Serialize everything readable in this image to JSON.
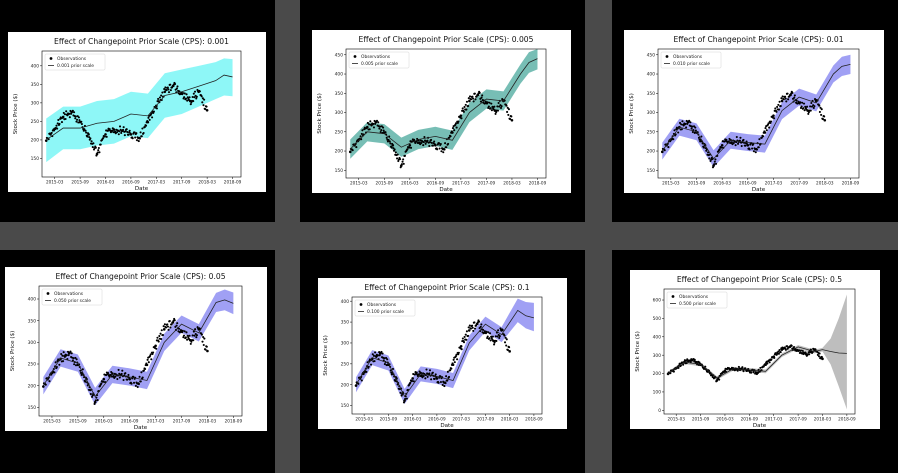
{
  "chart_data": [
    {
      "type": "line",
      "title": "Effect of Changepoint Prior Scale (CPS): 0.001",
      "xlabel": "Date",
      "ylabel": "Stock Price ($)",
      "x_ticks": [
        "2015-03",
        "2015-09",
        "2016-03",
        "2016-09",
        "2017-03",
        "2017-09",
        "2018-03",
        "2018-09"
      ],
      "y_ticks": [
        150,
        200,
        250,
        300,
        350,
        400
      ],
      "ylim": [
        100,
        440
      ],
      "legend": [
        "Observations",
        "0.001 prior scale"
      ],
      "legend_position": "top-left",
      "band_color": "#7af6f6",
      "line_color": "#222222",
      "series": [
        {
          "name": "Observations",
          "x": [
            "2015-01",
            "2015-03",
            "2015-05",
            "2015-07",
            "2015-09",
            "2015-11",
            "2016-01",
            "2016-03",
            "2016-05",
            "2016-07",
            "2016-09",
            "2016-11",
            "2017-01",
            "2017-03",
            "2017-05",
            "2017-07",
            "2017-09",
            "2017-11",
            "2018-01",
            "2018-03"
          ],
          "values": [
            198,
            230,
            262,
            275,
            248,
            215,
            162,
            215,
            228,
            225,
            215,
            205,
            248,
            292,
            330,
            346,
            325,
            305,
            330,
            280
          ]
        },
        {
          "name": "0.001 prior scale",
          "x": [
            "2015-01",
            "2015-05",
            "2015-09",
            "2016-01",
            "2016-05",
            "2016-09",
            "2017-01",
            "2017-05",
            "2017-09",
            "2018-01",
            "2018-05",
            "2018-07",
            "2018-09"
          ],
          "values": [
            200,
            232,
            232,
            245,
            250,
            270,
            265,
            320,
            330,
            345,
            360,
            375,
            370
          ],
          "lower": [
            140,
            175,
            175,
            185,
            190,
            210,
            205,
            260,
            270,
            290,
            310,
            320,
            318
          ],
          "upper": [
            258,
            290,
            290,
            305,
            310,
            330,
            325,
            380,
            390,
            400,
            410,
            420,
            418
          ]
        }
      ]
    },
    {
      "type": "line",
      "title": "Effect of Changepoint Prior Scale (CPS): 0.005",
      "xlabel": "Date",
      "ylabel": "Stock Price ($)",
      "x_ticks": [
        "2015-03",
        "2015-09",
        "2016-03",
        "2016-09",
        "2017-03",
        "2017-09",
        "2018-03",
        "2018-09"
      ],
      "y_ticks": [
        150,
        200,
        250,
        300,
        350,
        400,
        450
      ],
      "ylim": [
        130,
        465
      ],
      "legend": [
        "Observations",
        "0.005 prior scale"
      ],
      "legend_position": "top-left",
      "band_color": "#5fb3a8",
      "line_color": "#222222",
      "series": [
        {
          "name": "Observations",
          "x": [
            "2015-01",
            "2015-03",
            "2015-05",
            "2015-07",
            "2015-09",
            "2015-11",
            "2016-01",
            "2016-03",
            "2016-05",
            "2016-07",
            "2016-09",
            "2016-11",
            "2017-01",
            "2017-03",
            "2017-05",
            "2017-07",
            "2017-09",
            "2017-11",
            "2018-01",
            "2018-03"
          ],
          "values": [
            198,
            230,
            262,
            275,
            248,
            215,
            162,
            215,
            228,
            225,
            215,
            205,
            248,
            292,
            330,
            346,
            325,
            305,
            330,
            280
          ]
        },
        {
          "name": "0.005 prior scale",
          "x": [
            "2015-01",
            "2015-05",
            "2015-09",
            "2016-01",
            "2016-05",
            "2016-09",
            "2017-01",
            "2017-05",
            "2017-09",
            "2018-01",
            "2018-05",
            "2018-07",
            "2018-09"
          ],
          "values": [
            205,
            250,
            245,
            210,
            230,
            238,
            228,
            300,
            335,
            330,
            400,
            430,
            440
          ],
          "lower": [
            180,
            225,
            220,
            185,
            205,
            213,
            203,
            275,
            310,
            305,
            375,
            403,
            412
          ],
          "upper": [
            230,
            275,
            270,
            235,
            255,
            263,
            253,
            325,
            360,
            355,
            425,
            457,
            465
          ]
        }
      ]
    },
    {
      "type": "line",
      "title": "Effect of Changepoint Prior Scale (CPS): 0.01",
      "xlabel": "Date",
      "ylabel": "Stock Price ($)",
      "x_ticks": [
        "2015-03",
        "2015-09",
        "2016-03",
        "2016-09",
        "2017-03",
        "2017-09",
        "2018-03",
        "2018-09"
      ],
      "y_ticks": [
        150,
        200,
        250,
        300,
        350,
        400,
        450
      ],
      "ylim": [
        130,
        465
      ],
      "legend": [
        "Observations",
        "0.010 prior scale"
      ],
      "legend_position": "top-left",
      "band_color": "#8f8ff2",
      "line_color": "#222222",
      "series": [
        {
          "name": "Observations",
          "x": [
            "2015-01",
            "2015-03",
            "2015-05",
            "2015-07",
            "2015-09",
            "2015-11",
            "2016-01",
            "2016-03",
            "2016-05",
            "2016-07",
            "2016-09",
            "2016-11",
            "2017-01",
            "2017-03",
            "2017-05",
            "2017-07",
            "2017-09",
            "2017-11",
            "2018-01",
            "2018-03"
          ],
          "values": [
            198,
            230,
            262,
            275,
            248,
            215,
            162,
            215,
            228,
            225,
            215,
            205,
            248,
            292,
            330,
            346,
            325,
            305,
            330,
            280
          ]
        },
        {
          "name": "0.010 prior scale",
          "x": [
            "2015-01",
            "2015-05",
            "2015-09",
            "2016-01",
            "2016-05",
            "2016-09",
            "2017-01",
            "2017-05",
            "2017-09",
            "2018-01",
            "2018-05",
            "2018-07",
            "2018-09"
          ],
          "values": [
            200,
            262,
            250,
            180,
            228,
            222,
            218,
            305,
            340,
            325,
            400,
            420,
            425
          ],
          "lower": [
            178,
            240,
            228,
            158,
            206,
            200,
            196,
            283,
            318,
            303,
            378,
            395,
            400
          ],
          "upper": [
            222,
            284,
            272,
            202,
            250,
            244,
            240,
            327,
            362,
            347,
            422,
            445,
            450
          ]
        }
      ]
    },
    {
      "type": "line",
      "title": "Effect of Changepoint Prior Scale (CPS): 0.05",
      "xlabel": "Date",
      "ylabel": "Stock Price ($)",
      "x_ticks": [
        "2015-03",
        "2015-09",
        "2016-03",
        "2016-09",
        "2017-03",
        "2017-09",
        "2018-03",
        "2018-09"
      ],
      "y_ticks": [
        150,
        200,
        250,
        300,
        350,
        400
      ],
      "ylim": [
        130,
        430
      ],
      "legend": [
        "Observations",
        "0.050 prior scale"
      ],
      "legend_position": "top-left",
      "band_color": "#8f8ff2",
      "line_color": "#222222",
      "series": [
        {
          "name": "Observations",
          "x": [
            "2015-01",
            "2015-03",
            "2015-05",
            "2015-07",
            "2015-09",
            "2015-11",
            "2016-01",
            "2016-03",
            "2016-05",
            "2016-07",
            "2016-09",
            "2016-11",
            "2017-01",
            "2017-03",
            "2017-05",
            "2017-07",
            "2017-09",
            "2017-11",
            "2018-01",
            "2018-03"
          ],
          "values": [
            198,
            230,
            262,
            275,
            248,
            215,
            162,
            215,
            228,
            225,
            215,
            205,
            248,
            292,
            330,
            346,
            325,
            305,
            330,
            280
          ]
        },
        {
          "name": "0.050 prior scale",
          "x": [
            "2015-01",
            "2015-05",
            "2015-09",
            "2016-01",
            "2016-05",
            "2016-09",
            "2017-01",
            "2017-05",
            "2017-09",
            "2018-01",
            "2018-05",
            "2018-07",
            "2018-09"
          ],
          "values": [
            200,
            264,
            252,
            175,
            226,
            220,
            212,
            300,
            342,
            322,
            392,
            398,
            390
          ],
          "lower": [
            180,
            244,
            232,
            155,
            206,
            200,
            192,
            280,
            322,
            302,
            370,
            374,
            365
          ],
          "upper": [
            220,
            284,
            272,
            195,
            246,
            240,
            232,
            320,
            362,
            342,
            414,
            422,
            415
          ]
        }
      ]
    },
    {
      "type": "line",
      "title": "Effect of Changepoint Prior Scale (CPS): 0.1",
      "xlabel": "Date",
      "ylabel": "Stock Price ($)",
      "x_ticks": [
        "2015-03",
        "2015-09",
        "2016-03",
        "2016-09",
        "2017-03",
        "2017-09",
        "2018-03",
        "2018-09"
      ],
      "y_ticks": [
        150,
        200,
        250,
        300,
        350,
        400
      ],
      "ylim": [
        130,
        410
      ],
      "legend": [
        "Observations",
        "0.100 prior scale"
      ],
      "legend_position": "top-left",
      "band_color": "#8f8ff2",
      "line_color": "#222222",
      "series": [
        {
          "name": "Observations",
          "x": [
            "2015-01",
            "2015-03",
            "2015-05",
            "2015-07",
            "2015-09",
            "2015-11",
            "2016-01",
            "2016-03",
            "2016-05",
            "2016-07",
            "2016-09",
            "2016-11",
            "2017-01",
            "2017-03",
            "2017-05",
            "2017-07",
            "2017-09",
            "2017-11",
            "2018-01",
            "2018-03"
          ],
          "values": [
            198,
            230,
            262,
            275,
            248,
            215,
            162,
            215,
            228,
            225,
            215,
            205,
            248,
            292,
            330,
            346,
            325,
            305,
            330,
            280
          ]
        },
        {
          "name": "0.100 prior scale",
          "x": [
            "2015-01",
            "2015-05",
            "2015-09",
            "2016-01",
            "2016-05",
            "2016-09",
            "2017-01",
            "2017-05",
            "2017-09",
            "2018-01",
            "2018-05",
            "2018-07",
            "2018-09"
          ],
          "values": [
            200,
            265,
            252,
            172,
            226,
            220,
            210,
            300,
            345,
            320,
            378,
            365,
            360
          ],
          "lower": [
            182,
            247,
            234,
            154,
            208,
            202,
            192,
            282,
            327,
            302,
            350,
            335,
            328
          ],
          "upper": [
            218,
            283,
            270,
            190,
            244,
            238,
            228,
            318,
            363,
            338,
            406,
            398,
            396
          ]
        }
      ]
    },
    {
      "type": "line",
      "title": "Effect of Changepoint Prior Scale (CPS): 0.5",
      "xlabel": "Date",
      "ylabel": "Stock Price ($)",
      "x_ticks": [
        "2015-03",
        "2015-09",
        "2016-03",
        "2016-09",
        "2017-03",
        "2017-09",
        "2018-03",
        "2018-09"
      ],
      "y_ticks": [
        0,
        100,
        200,
        300,
        400,
        500,
        600
      ],
      "ylim": [
        -20,
        660
      ],
      "legend": [
        "Observations",
        "0.500 prior scale"
      ],
      "legend_position": "top-left",
      "band_color": "#b3b3b3",
      "line_color": "#222222",
      "series": [
        {
          "name": "Observations",
          "x": [
            "2015-01",
            "2015-03",
            "2015-05",
            "2015-07",
            "2015-09",
            "2015-11",
            "2016-01",
            "2016-03",
            "2016-05",
            "2016-07",
            "2016-09",
            "2016-11",
            "2017-01",
            "2017-03",
            "2017-05",
            "2017-07",
            "2017-09",
            "2017-11",
            "2018-01",
            "2018-03"
          ],
          "values": [
            198,
            230,
            262,
            275,
            248,
            215,
            162,
            215,
            228,
            225,
            215,
            205,
            248,
            292,
            330,
            346,
            325,
            305,
            330,
            280
          ]
        },
        {
          "name": "0.500 prior scale",
          "x": [
            "2015-01",
            "2015-05",
            "2015-09",
            "2016-01",
            "2016-05",
            "2016-09",
            "2017-01",
            "2017-05",
            "2017-09",
            "2018-01",
            "2018-03",
            "2018-05",
            "2018-07",
            "2018-09"
          ],
          "values": [
            200,
            262,
            250,
            175,
            226,
            220,
            212,
            300,
            345,
            320,
            330,
            320,
            312,
            310
          ],
          "lower": [
            190,
            252,
            240,
            165,
            216,
            210,
            202,
            290,
            335,
            310,
            320,
            250,
            130,
            5
          ],
          "upper": [
            210,
            272,
            260,
            185,
            236,
            230,
            222,
            310,
            355,
            330,
            340,
            390,
            500,
            630
          ]
        }
      ]
    }
  ]
}
